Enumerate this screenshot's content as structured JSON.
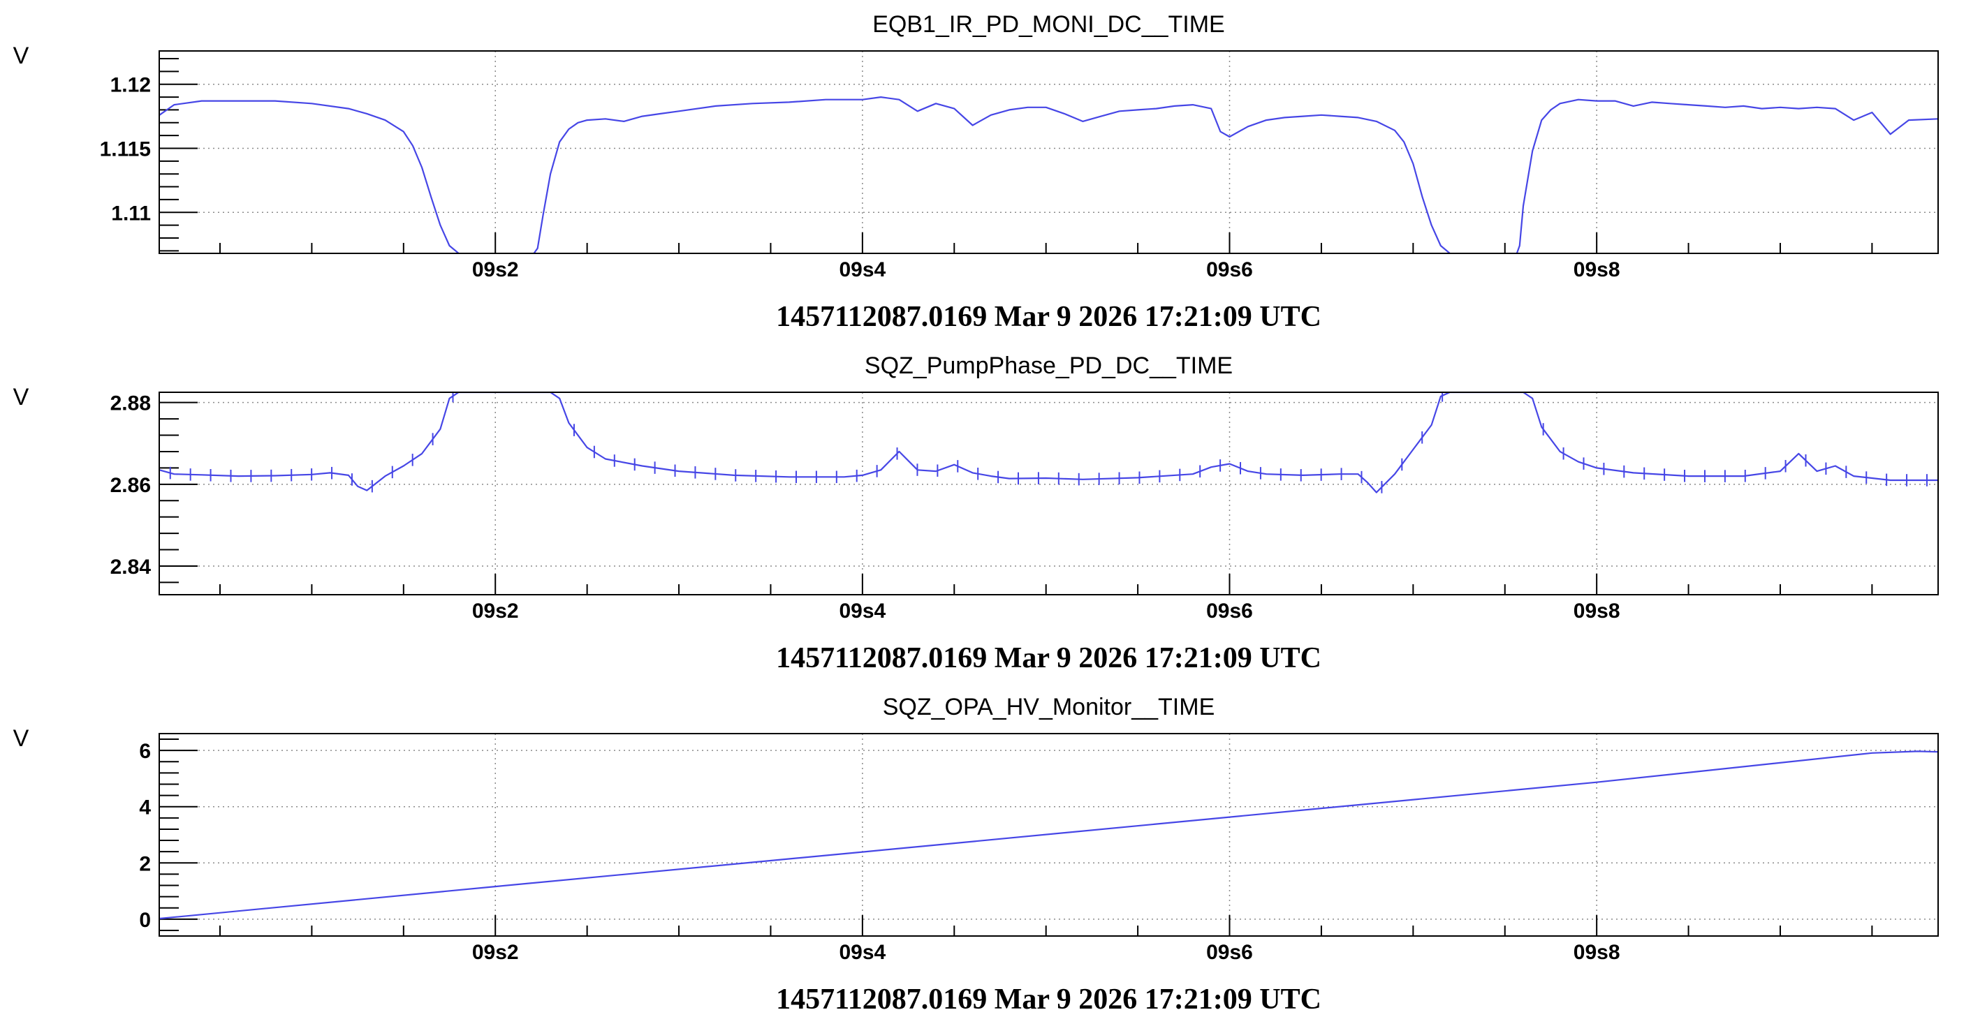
{
  "chart_data": [
    {
      "type": "line",
      "title": "EQB1_IR_PD_MONI_DC__TIME",
      "ylabel": "V",
      "xlabel": "1457112087.0169 Mar 9 2026 17:21:09 UTC",
      "xlim": [
        9.0169,
        9.986
      ],
      "ylim": [
        1.1068,
        1.1226
      ],
      "x_ticks": [
        9.2,
        9.4,
        9.6,
        9.8
      ],
      "x_tick_labels": [
        "09s2",
        "09s4",
        "09s6",
        "09s8"
      ],
      "y_ticks": [
        1.11,
        1.115,
        1.12
      ],
      "y_tick_labels": [
        "1.11",
        "1.115",
        "1.12"
      ],
      "grid": true,
      "error_bars": false,
      "series": [
        {
          "x": [
            9.017,
            9.025,
            9.04,
            9.06,
            9.08,
            9.1,
            9.12,
            9.13,
            9.14,
            9.15,
            9.155,
            9.16,
            9.165,
            9.17,
            9.175,
            9.18,
            9.182,
            9.2,
            9.22,
            9.223,
            9.226,
            9.23,
            9.235,
            9.24,
            9.245,
            9.25,
            9.26,
            9.27,
            9.28,
            9.29,
            9.3,
            9.32,
            9.34,
            9.36,
            9.38,
            9.39,
            9.4,
            9.41,
            9.42,
            9.43,
            9.44,
            9.45,
            9.46,
            9.47,
            9.48,
            9.49,
            9.5,
            9.51,
            9.52,
            9.53,
            9.54,
            9.55,
            9.56,
            9.57,
            9.58,
            9.59,
            9.595,
            9.6,
            9.61,
            9.62,
            9.63,
            9.64,
            9.65,
            9.66,
            9.67,
            9.68,
            9.69,
            9.695,
            9.7,
            9.705,
            9.71,
            9.715,
            9.72,
            9.722,
            9.74,
            9.756,
            9.758,
            9.76,
            9.765,
            9.77,
            9.775,
            9.78,
            9.79,
            9.8,
            9.81,
            9.82,
            9.83,
            9.84,
            9.85,
            9.86,
            9.87,
            9.88,
            9.89,
            9.9,
            9.91,
            9.92,
            9.93,
            9.94,
            9.95,
            9.96,
            9.97,
            9.986
          ],
          "y": [
            1.1176,
            1.1184,
            1.1187,
            1.1187,
            1.1187,
            1.1185,
            1.1181,
            1.1177,
            1.1172,
            1.1163,
            1.1152,
            1.1135,
            1.1112,
            1.109,
            1.1074,
            1.1068,
            1.1066,
            1.1066,
            1.1066,
            1.1072,
            1.1098,
            1.113,
            1.1155,
            1.1165,
            1.117,
            1.1172,
            1.1173,
            1.1171,
            1.1175,
            1.1177,
            1.1179,
            1.1183,
            1.1185,
            1.1186,
            1.1188,
            1.1188,
            1.1188,
            1.119,
            1.1188,
            1.1179,
            1.1185,
            1.1181,
            1.1168,
            1.1176,
            1.118,
            1.1182,
            1.1182,
            1.1177,
            1.1171,
            1.1175,
            1.1179,
            1.118,
            1.1181,
            1.1183,
            1.1184,
            1.1181,
            1.1163,
            1.1159,
            1.1167,
            1.1172,
            1.1174,
            1.1175,
            1.1176,
            1.1175,
            1.1174,
            1.1171,
            1.1164,
            1.1155,
            1.1138,
            1.1112,
            1.109,
            1.1074,
            1.1068,
            1.1066,
            1.1066,
            1.1066,
            1.1074,
            1.1105,
            1.1148,
            1.1172,
            1.118,
            1.1185,
            1.1188,
            1.1187,
            1.1187,
            1.1183,
            1.1186,
            1.1185,
            1.1184,
            1.1183,
            1.1182,
            1.1183,
            1.1181,
            1.1182,
            1.1181,
            1.1182,
            1.1181,
            1.1172,
            1.1178,
            1.1161,
            1.1172,
            1.1173
          ]
        }
      ]
    },
    {
      "type": "line",
      "title": "SQZ_PumpPhase_PD_DC__TIME",
      "ylabel": "V",
      "xlabel": "1457112087.0169 Mar 9 2026 17:21:09 UTC",
      "xlim": [
        9.0169,
        9.986
      ],
      "ylim": [
        2.833,
        2.8825
      ],
      "x_ticks": [
        9.2,
        9.4,
        9.6,
        9.8
      ],
      "x_tick_labels": [
        "09s2",
        "09s4",
        "09s6",
        "09s8"
      ],
      "y_ticks": [
        2.84,
        2.86,
        2.88
      ],
      "y_tick_labels": [
        "2.84",
        "2.86",
        "2.88"
      ],
      "grid": true,
      "error_bars": true,
      "error_half_width": 0.0015,
      "series": [
        {
          "x": [
            9.017,
            9.025,
            9.04,
            9.06,
            9.08,
            9.1,
            9.11,
            9.12,
            9.125,
            9.13,
            9.14,
            9.15,
            9.16,
            9.17,
            9.175,
            9.18,
            9.2,
            9.22,
            9.23,
            9.235,
            9.24,
            9.25,
            9.26,
            9.28,
            9.3,
            9.33,
            9.36,
            9.39,
            9.4,
            9.41,
            9.42,
            9.43,
            9.44,
            9.45,
            9.46,
            9.47,
            9.48,
            9.5,
            9.52,
            9.55,
            9.58,
            9.59,
            9.6,
            9.61,
            9.62,
            9.64,
            9.66,
            9.67,
            9.675,
            9.68,
            9.69,
            9.7,
            9.71,
            9.715,
            9.72,
            9.74,
            9.76,
            9.765,
            9.77,
            9.78,
            9.79,
            9.8,
            9.82,
            9.85,
            9.88,
            9.9,
            9.91,
            9.92,
            9.93,
            9.94,
            9.95,
            9.96,
            9.97,
            9.986
          ],
          "y": [
            2.8635,
            2.8625,
            2.8623,
            2.862,
            2.8621,
            2.8624,
            2.8628,
            2.8622,
            2.8595,
            2.8585,
            2.862,
            2.8645,
            2.8675,
            2.8735,
            2.881,
            2.8825,
            2.8825,
            2.8825,
            2.8825,
            2.881,
            2.875,
            2.869,
            2.8662,
            2.8645,
            2.8632,
            2.8622,
            2.8618,
            2.8618,
            2.8622,
            2.8635,
            2.868,
            2.8635,
            2.8632,
            2.8648,
            2.8628,
            2.862,
            2.8614,
            2.8615,
            2.8612,
            2.8616,
            2.8625,
            2.8642,
            2.865,
            2.8632,
            2.8625,
            2.8622,
            2.8625,
            2.8625,
            2.8605,
            2.858,
            2.8625,
            2.8685,
            2.8745,
            2.8815,
            2.8825,
            2.8825,
            2.8825,
            2.881,
            2.874,
            2.868,
            2.8655,
            2.864,
            2.8628,
            2.862,
            2.862,
            2.8632,
            2.8675,
            2.8632,
            2.8645,
            2.862,
            2.8615,
            2.861,
            2.861,
            2.861
          ]
        }
      ]
    },
    {
      "type": "line",
      "title": "SQZ_OPA_HV_Monitor__TIME",
      "ylabel": "V",
      "xlabel": "1457112087.0169 Mar 9 2026 17:21:09 UTC",
      "xlim": [
        9.0169,
        9.986
      ],
      "ylim": [
        -0.6,
        6.6
      ],
      "x_ticks": [
        9.2,
        9.4,
        9.6,
        9.8
      ],
      "x_tick_labels": [
        "09s2",
        "09s4",
        "09s6",
        "09s8"
      ],
      "y_ticks": [
        0,
        2,
        4,
        6
      ],
      "y_tick_labels": [
        "0",
        "2",
        "4",
        "6"
      ],
      "grid": true,
      "error_bars": false,
      "series": [
        {
          "x": [
            9.017,
            9.2,
            9.4,
            9.6,
            9.8,
            9.95,
            9.975,
            9.986
          ],
          "y": [
            0.02,
            1.16,
            2.39,
            3.63,
            4.87,
            5.91,
            5.97,
            5.95
          ]
        }
      ]
    }
  ]
}
